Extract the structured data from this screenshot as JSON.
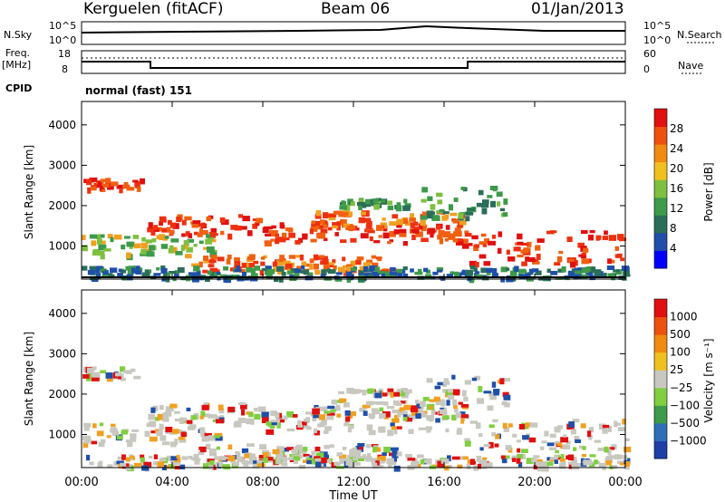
{
  "header": {
    "station": "Kerguelen (fitACF)",
    "beam": "Beam 06",
    "date": "01/Jan/2013"
  },
  "top_panels": {
    "nsky_label": "N.Sky",
    "nsky_ticks": [
      "10^5",
      "10^0"
    ],
    "nsearch_label": "N.Search",
    "nsearch_ticks": [
      "10^5",
      "10^0"
    ],
    "freq_label": "Freq.",
    "freq_unit": "[MHz]",
    "freq_ticks": [
      "18",
      "8"
    ],
    "nave_label": "Nave",
    "nave_ticks": [
      "60",
      "0"
    ],
    "cpid_label": "CPID",
    "cpid_value": "normal (fast) 151"
  },
  "chart_data": [
    {
      "type": "heatmap",
      "name": "power",
      "ylabel": "Slant Range [km]",
      "yticks": [
        "4000",
        "3000",
        "2000",
        "1000"
      ],
      "y_values": [
        4000,
        3000,
        2000,
        1000
      ],
      "ylim": [
        180,
        4580
      ],
      "xlim": [
        0,
        24
      ],
      "colorbar_label": "Power [dB]",
      "colorbar_ticks": [
        "28",
        "24",
        "20",
        "16",
        "12",
        "8",
        "4"
      ],
      "colorbar_values": [
        28,
        24,
        20,
        16,
        12,
        8,
        4
      ],
      "colorbar_range": [
        0,
        32
      ],
      "colors": [
        "#0000ff",
        "#1f4fa8",
        "#2a6e5a",
        "#3d9a4a",
        "#7fbf3f",
        "#f0c020",
        "#f08a10",
        "#ee5010",
        "#e01010"
      ]
    },
    {
      "type": "heatmap",
      "name": "velocity",
      "ylabel": "Slant Range [km]",
      "yticks": [
        "4000",
        "3000",
        "2000",
        "1000"
      ],
      "y_values": [
        4000,
        3000,
        2000,
        1000
      ],
      "ylim": [
        180,
        4580
      ],
      "xlim": [
        0,
        24
      ],
      "colorbar_label": "Velocity [m s⁻¹]",
      "colorbar_ticks": [
        "1000",
        "500",
        "100",
        "25",
        "−25",
        "−100",
        "−500",
        "−1000"
      ],
      "colors": [
        "#1f3fa8",
        "#2f6fb8",
        "#3d9a4a",
        "#7fcf3f",
        "#c8c8c0",
        "#f0c020",
        "#f08a10",
        "#ee5010",
        "#e01010"
      ]
    }
  ],
  "x_axis": {
    "label": "Time UT",
    "ticks": [
      "00:00",
      "04:00",
      "08:00",
      "12:00",
      "16:00",
      "20:00",
      "00:00"
    ],
    "values": [
      0,
      4,
      8,
      12,
      16,
      20,
      24
    ]
  }
}
